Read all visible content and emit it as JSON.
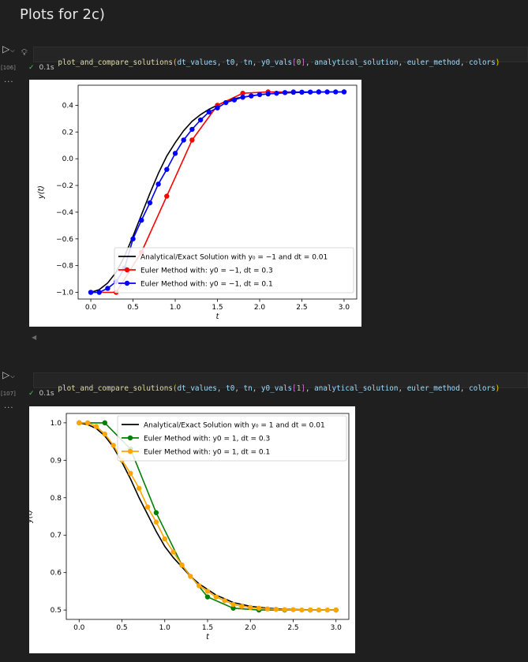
{
  "heading": "Plots for 2c)",
  "cells": [
    {
      "exec_count": "[106]",
      "status_time": "0.1s",
      "code": {
        "fn": "plot_and_compare_solutions",
        "args": [
          "dt_values",
          "t0",
          "tn",
          "y0_vals",
          "0",
          "analytical_solution",
          "euler_method",
          "colors"
        ]
      }
    },
    {
      "exec_count": "[107]",
      "status_time": "0.1s",
      "code": {
        "fn": "plot_and_compare_solutions",
        "args": [
          "dt_values",
          "t0",
          "tn",
          "y0_vals",
          "1",
          "analytical_solution",
          "euler_method",
          "colors"
        ]
      }
    }
  ],
  "icons": {
    "run": "run-icon",
    "chevron": "chevron-down-icon",
    "bulb": "lightbulb-icon",
    "check": "check-icon",
    "more": "more-icon"
  },
  "colors": {
    "check": "#4ec35a",
    "bg": "#1f1f1f"
  },
  "chart_data": [
    {
      "type": "line",
      "xlabel": "t",
      "ylabel": "y(t)",
      "xlim": [
        -0.15,
        3.15
      ],
      "ylim": [
        -1.05,
        0.55
      ],
      "xticks": [
        "0.0",
        "0.5",
        "1.0",
        "1.5",
        "2.0",
        "2.5",
        "3.0"
      ],
      "yticks": [
        "−1.0",
        "−0.8",
        "−0.6",
        "−0.4",
        "−0.2",
        "0.0",
        "0.2",
        "0.4"
      ],
      "legend_position": "lower-right",
      "legend": [
        "Analytical/Exact Solution with y₀ = −1 and dt = 0.01",
        "Euler Method with: y0 = −1, dt = 0.3",
        "Euler Method with: y0 = −1, dt = 0.1"
      ],
      "series": [
        {
          "name": "Analytical/Exact Solution with y₀ = −1 and dt = 0.01",
          "color": "#000000",
          "markers": false,
          "x": [
            0,
            0.1,
            0.2,
            0.3,
            0.4,
            0.5,
            0.6,
            0.7,
            0.8,
            0.9,
            1.0,
            1.1,
            1.2,
            1.3,
            1.4,
            1.5,
            1.6,
            1.7,
            1.8,
            1.9,
            2.0,
            2.2,
            2.4,
            2.6,
            2.8,
            3.0
          ],
          "y": [
            -1.0,
            -0.98,
            -0.93,
            -0.85,
            -0.73,
            -0.58,
            -0.42,
            -0.26,
            -0.11,
            0.02,
            0.12,
            0.21,
            0.28,
            0.33,
            0.37,
            0.4,
            0.43,
            0.45,
            0.46,
            0.47,
            0.48,
            0.49,
            0.495,
            0.497,
            0.499,
            0.5
          ]
        },
        {
          "name": "Euler Method with: y0 = −1, dt = 0.3",
          "color": "#ff0000",
          "markers": true,
          "x": [
            0,
            0.3,
            0.6,
            0.9,
            1.2,
            1.5,
            1.8,
            2.1,
            2.4,
            2.7,
            3.0
          ],
          "y": [
            -1.0,
            -1.0,
            -0.7,
            -0.28,
            0.14,
            0.4,
            0.49,
            0.5,
            0.5,
            0.5,
            0.5
          ]
        },
        {
          "name": "Euler Method with: y0 = −1, dt = 0.1",
          "color": "#0000ff",
          "markers": true,
          "x": [
            0,
            0.1,
            0.2,
            0.3,
            0.4,
            0.5,
            0.6,
            0.7,
            0.8,
            0.9,
            1.0,
            1.1,
            1.2,
            1.3,
            1.4,
            1.5,
            1.6,
            1.7,
            1.8,
            1.9,
            2.0,
            2.1,
            2.2,
            2.3,
            2.4,
            2.5,
            2.6,
            2.7,
            2.8,
            2.9,
            3.0
          ],
          "y": [
            -1.0,
            -1.0,
            -0.97,
            -0.92,
            -0.82,
            -0.6,
            -0.46,
            -0.33,
            -0.19,
            -0.08,
            0.04,
            0.14,
            0.22,
            0.29,
            0.35,
            0.38,
            0.42,
            0.44,
            0.46,
            0.47,
            0.48,
            0.485,
            0.49,
            0.495,
            0.497,
            0.498,
            0.499,
            0.5,
            0.5,
            0.5,
            0.5
          ]
        }
      ]
    },
    {
      "type": "line",
      "xlabel": "t",
      "ylabel": "y(t)",
      "xlim": [
        -0.15,
        3.15
      ],
      "ylim": [
        0.475,
        1.025
      ],
      "xticks": [
        "0.0",
        "0.5",
        "1.0",
        "1.5",
        "2.0",
        "2.5",
        "3.0"
      ],
      "yticks": [
        "0.5",
        "0.6",
        "0.7",
        "0.8",
        "0.9",
        "1.0"
      ],
      "legend_position": "upper-right",
      "legend": [
        "Analytical/Exact Solution with y₀ = 1 and dt = 0.01",
        "Euler Method with: y0 = 1, dt = 0.3",
        "Euler Method with: y0 = 1, dt = 0.1"
      ],
      "series": [
        {
          "name": "Analytical/Exact Solution with y₀ = 1 and dt = 0.01",
          "color": "#000000",
          "markers": false,
          "x": [
            0,
            0.1,
            0.2,
            0.3,
            0.4,
            0.5,
            0.6,
            0.7,
            0.8,
            0.9,
            1.0,
            1.1,
            1.2,
            1.3,
            1.4,
            1.5,
            1.6,
            1.7,
            1.8,
            2.0,
            2.2,
            2.4,
            2.6,
            2.8,
            3.0
          ],
          "y": [
            1.0,
            0.995,
            0.985,
            0.965,
            0.935,
            0.895,
            0.85,
            0.8,
            0.755,
            0.71,
            0.67,
            0.64,
            0.615,
            0.59,
            0.57,
            0.555,
            0.54,
            0.53,
            0.52,
            0.51,
            0.505,
            0.502,
            0.501,
            0.5,
            0.5
          ]
        },
        {
          "name": "Euler Method with: y0 = 1, dt = 0.3",
          "color": "#008000",
          "markers": true,
          "x": [
            0,
            0.3,
            0.6,
            0.9,
            1.2,
            1.5,
            1.8,
            2.1,
            2.4,
            2.7,
            3.0
          ],
          "y": [
            1.0,
            1.0,
            0.93,
            0.76,
            0.62,
            0.535,
            0.505,
            0.5,
            0.5,
            0.5,
            0.5
          ]
        },
        {
          "name": "Euler Method with: y0 = 1, dt = 0.1",
          "color": "#ffa500",
          "markers": true,
          "x": [
            0,
            0.1,
            0.2,
            0.3,
            0.4,
            0.5,
            0.6,
            0.7,
            0.8,
            0.9,
            1.0,
            1.1,
            1.2,
            1.3,
            1.4,
            1.5,
            1.6,
            1.7,
            1.8,
            1.9,
            2.0,
            2.1,
            2.2,
            2.3,
            2.4,
            2.5,
            2.6,
            2.7,
            2.8,
            2.9,
            3.0
          ],
          "y": [
            1.0,
            1.0,
            0.99,
            0.97,
            0.94,
            0.9,
            0.865,
            0.825,
            0.775,
            0.735,
            0.69,
            0.655,
            0.62,
            0.59,
            0.565,
            0.55,
            0.535,
            0.525,
            0.515,
            0.51,
            0.507,
            0.505,
            0.503,
            0.502,
            0.501,
            0.501,
            0.5,
            0.5,
            0.5,
            0.5,
            0.5
          ]
        }
      ]
    }
  ]
}
